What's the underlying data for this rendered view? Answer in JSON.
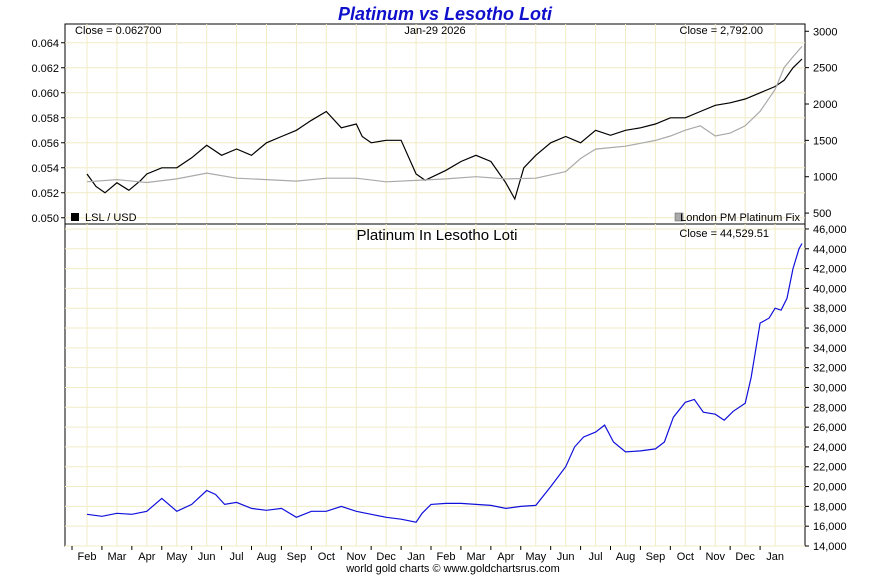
{
  "chart_data": [
    {
      "type": "line",
      "title": "Platinum vs Lesotho Loti",
      "date_label": "Jan-29  2026",
      "left_close_label": "Close = 0.062700",
      "right_close_label": "Close = 2,792.00",
      "x_labels": [
        "Feb",
        "Mar",
        "Apr",
        "May",
        "Jun",
        "Jul",
        "Aug",
        "Sep",
        "Oct",
        "Nov",
        "Dec",
        "Jan",
        "Feb",
        "Mar",
        "Apr",
        "May",
        "Jun",
        "Jul",
        "Aug",
        "Sep",
        "Oct",
        "Nov",
        "Dec",
        "Jan"
      ],
      "y_left": {
        "ticks": [
          "0.064",
          "0.062",
          "0.060",
          "0.058",
          "0.056",
          "0.054",
          "0.052",
          "0.050"
        ],
        "ylim": [
          0.0495,
          0.0655
        ]
      },
      "y_right": {
        "ticks": [
          "3000",
          "2500",
          "2000",
          "1500",
          "1000",
          "500"
        ],
        "ylim": [
          350,
          3100
        ]
      },
      "series": [
        {
          "name": "LSL / USD",
          "axis": "left",
          "color": "#000000",
          "x": [
            0,
            0.3,
            0.6,
            1,
            1.4,
            1.8,
            2,
            2.5,
            3,
            3.5,
            4,
            4.5,
            5,
            5.5,
            6,
            6.5,
            7,
            7.5,
            8,
            8.5,
            9,
            9.2,
            9.5,
            10,
            10.5,
            11,
            11.3,
            12,
            12.5,
            13,
            13.5,
            14,
            14.3,
            14.6,
            15,
            15.5,
            16,
            16.5,
            17,
            17.5,
            18,
            18.5,
            19,
            19.5,
            20,
            20.5,
            21,
            21.5,
            22,
            22.5,
            23,
            23.3,
            23.6,
            23.9
          ],
          "values": [
            0.0535,
            0.0525,
            0.052,
            0.0528,
            0.0522,
            0.053,
            0.0535,
            0.054,
            0.054,
            0.0548,
            0.0558,
            0.055,
            0.0555,
            0.055,
            0.056,
            0.0565,
            0.057,
            0.0578,
            0.0585,
            0.0572,
            0.0575,
            0.0565,
            0.056,
            0.0562,
            0.0562,
            0.0535,
            0.053,
            0.0538,
            0.0545,
            0.055,
            0.0545,
            0.0528,
            0.0515,
            0.054,
            0.055,
            0.056,
            0.0565,
            0.056,
            0.057,
            0.0566,
            0.057,
            0.0572,
            0.0575,
            0.058,
            0.058,
            0.0585,
            0.059,
            0.0592,
            0.0595,
            0.06,
            0.0605,
            0.061,
            0.062,
            0.0627
          ]
        },
        {
          "name": "London PM Platinum Fix",
          "axis": "right",
          "color": "#aaaaaa",
          "x": [
            0,
            1,
            2,
            3,
            4,
            5,
            6,
            7,
            8,
            9,
            10,
            11,
            12,
            13,
            14,
            15,
            16,
            16.5,
            17,
            17.5,
            18,
            18.5,
            19,
            19.5,
            20,
            20.5,
            21,
            21.5,
            22,
            22.5,
            23,
            23.3,
            23.6,
            23.9
          ],
          "values": [
            930,
            960,
            920,
            970,
            1050,
            980,
            960,
            940,
            980,
            980,
            930,
            950,
            970,
            1000,
            970,
            980,
            1070,
            1250,
            1380,
            1400,
            1420,
            1460,
            1500,
            1560,
            1640,
            1700,
            1560,
            1600,
            1700,
            1900,
            2200,
            2500,
            2650,
            2792
          ]
        }
      ]
    },
    {
      "type": "line",
      "title": "Platinum In Lesotho Loti",
      "close_label": "Close = 44,529.51",
      "x_labels": [
        "Feb",
        "Mar",
        "Apr",
        "May",
        "Jun",
        "Jul",
        "Aug",
        "Sep",
        "Oct",
        "Nov",
        "Dec",
        "Jan",
        "Feb",
        "Mar",
        "Apr",
        "May",
        "Jun",
        "Jul",
        "Aug",
        "Sep",
        "Oct",
        "Nov",
        "Dec",
        "Jan"
      ],
      "y": {
        "ticks": [
          "46,000",
          "44,000",
          "42,000",
          "40,000",
          "38,000",
          "36,000",
          "34,000",
          "32,000",
          "30,000",
          "28,000",
          "26,000",
          "24,000",
          "22,000",
          "20,000",
          "18,000",
          "16,000",
          "14,000"
        ],
        "ylim": [
          14000,
          46500
        ]
      },
      "series": [
        {
          "name": "Platinum In Lesotho Loti",
          "color": "#1010dd",
          "x": [
            0,
            0.5,
            1,
            1.5,
            2,
            2.5,
            3,
            3.5,
            4,
            4.3,
            4.6,
            5,
            5.5,
            6,
            6.5,
            7,
            7.5,
            8,
            8.5,
            9,
            9.5,
            10,
            10.5,
            11,
            11.2,
            11.5,
            12,
            12.5,
            13,
            13.5,
            14,
            14.5,
            15,
            15.5,
            16,
            16.3,
            16.6,
            17,
            17.3,
            17.6,
            18,
            18.5,
            19,
            19.3,
            19.6,
            20,
            20.3,
            20.6,
            21,
            21.3,
            21.6,
            22,
            22.2,
            22.5,
            22.8,
            23,
            23.2,
            23.4,
            23.6,
            23.8,
            23.9
          ],
          "values": [
            17200,
            17000,
            17300,
            17200,
            17500,
            18800,
            17500,
            18200,
            19600,
            19200,
            18200,
            18400,
            17800,
            17600,
            17800,
            16900,
            17500,
            17500,
            18000,
            17500,
            17200,
            16900,
            16700,
            16400,
            17300,
            18200,
            18300,
            18300,
            18200,
            18100,
            17800,
            18000,
            18100,
            20000,
            22000,
            24000,
            25000,
            25500,
            26200,
            24500,
            23500,
            23600,
            23800,
            24500,
            27000,
            28500,
            28800,
            27500,
            27300,
            26700,
            27600,
            28400,
            31000,
            36500,
            37000,
            38000,
            37800,
            39000,
            42000,
            44000,
            44529
          ]
        }
      ]
    }
  ],
  "legend": {
    "left": "LSL / USD",
    "right": "London PM Platinum Fix"
  },
  "footer": "world gold charts © www.goldchartsrus.com"
}
